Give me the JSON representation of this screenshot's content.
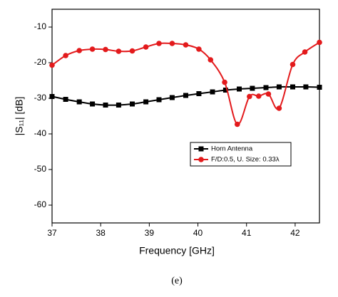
{
  "chart_data": {
    "type": "line",
    "xlabel": "Frequency [GHz]",
    "ylabel": "|S₁₁| [dB]",
    "caption": "(e)",
    "xlim": [
      37,
      42.5
    ],
    "xticks": [
      37,
      38,
      39,
      40,
      41,
      42
    ],
    "ylim": [
      -65,
      -5
    ],
    "yticks": [
      -10,
      -20,
      -30,
      -40,
      -50,
      -60
    ],
    "legend": "center-right",
    "series": [
      {
        "name": "Horn Antenna",
        "color": "#000000",
        "marker": "square",
        "x": [
          37.0,
          37.28,
          37.56,
          37.83,
          38.1,
          38.37,
          38.65,
          38.93,
          39.2,
          39.47,
          39.75,
          40.02,
          40.3,
          40.57,
          40.85,
          41.12,
          41.4,
          41.67,
          41.95,
          42.22,
          42.5
        ],
        "values": [
          -29.5,
          -30.3,
          -31,
          -31.6,
          -31.9,
          -31.9,
          -31.6,
          -31,
          -30.4,
          -29.8,
          -29.2,
          -28.7,
          -28.2,
          -27.7,
          -27.4,
          -27.2,
          -27,
          -26.8,
          -26.8,
          -26.8,
          -26.9
        ]
      },
      {
        "name": "F/D:0.5, U. Size: 0.33λ",
        "color": "#e31a1c",
        "marker": "circle",
        "x": [
          37.0,
          37.28,
          37.56,
          37.83,
          38.1,
          38.37,
          38.65,
          38.93,
          39.2,
          39.47,
          39.75,
          40.02,
          40.26,
          40.55,
          40.81,
          41.06,
          41.25,
          41.45,
          41.67,
          41.95,
          42.2,
          42.5
        ],
        "values": [
          -20.7,
          -18,
          -16.6,
          -16.2,
          -16.3,
          -16.8,
          -16.7,
          -15.6,
          -14.6,
          -14.6,
          -15,
          -16.2,
          -19.2,
          -25.5,
          -37.3,
          -29.5,
          -29.4,
          -28.8,
          -32.8,
          -20.5,
          -17,
          -14.3
        ]
      }
    ]
  }
}
